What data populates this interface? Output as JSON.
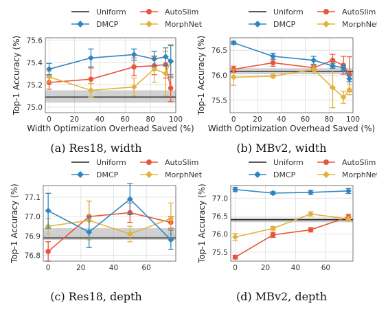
{
  "legend": {
    "uniform": "Uniform",
    "dmcp": "DMCP",
    "autoslim": "AutoSlim",
    "morphnet": "MorphNet"
  },
  "colors": {
    "uniform": "#222222",
    "dmcp": "#2e86c1",
    "autoslim": "#e8553a",
    "morphnet": "#e2b33c",
    "band": "#9a9a9a"
  },
  "chart_data": [
    {
      "type": "line",
      "caption": "(a) Res18, width",
      "xlabel": "Width Optimization Overhead Saved (%)",
      "ylabel": "Top-1 Accuracy (%)",
      "xlim": [
        -3,
        100
      ],
      "ylim": [
        74.95,
        75.62
      ],
      "xticks": [
        0,
        20,
        40,
        60,
        80,
        100
      ],
      "yticks": [
        75.0,
        75.2,
        75.4,
        75.6
      ],
      "ytick_labels": [
        "75.0",
        "75.2",
        "75.4",
        "75.6"
      ],
      "uniform": {
        "value": 75.09,
        "band": [
          75.04,
          75.15
        ]
      },
      "series": [
        {
          "name": "DMCP",
          "x": [
            0,
            33,
            67,
            83,
            92,
            96
          ],
          "y": [
            75.34,
            75.44,
            75.47,
            75.43,
            75.45,
            75.41
          ],
          "err": [
            0.05,
            0.08,
            0.05,
            0.07,
            0.08,
            0.14
          ]
        },
        {
          "name": "AutoSlim",
          "x": [
            0,
            33,
            67,
            83,
            92,
            96
          ],
          "y": [
            75.22,
            75.25,
            75.36,
            75.37,
            75.38,
            75.17
          ],
          "err": [
            0.06,
            0.1,
            0.08,
            0.08,
            0.12,
            0.12
          ]
        },
        {
          "name": "MorphNet",
          "x": [
            0,
            33,
            67,
            83,
            92,
            96
          ],
          "y": [
            75.27,
            75.15,
            75.18,
            75.34,
            75.3,
            75.41
          ],
          "err": [
            0.05,
            0.06,
            0.08,
            0.12,
            0.2,
            0.15
          ]
        }
      ]
    },
    {
      "type": "line",
      "caption": "(b) MBv2, width",
      "xlabel": "Width Optimization Overhead Saved (%)",
      "ylabel": "Top-1 Accuracy (%)",
      "xlim": [
        -3,
        100
      ],
      "ylim": [
        75.25,
        76.75
      ],
      "xticks": [
        0,
        20,
        40,
        60,
        80,
        100
      ],
      "yticks": [
        75.5,
        76.0,
        76.5
      ],
      "ytick_labels": [
        "75.5",
        "76.0",
        "76.5"
      ],
      "uniform": {
        "value": 76.08,
        "band": [
          76.02,
          76.14
        ]
      },
      "series": [
        {
          "name": "DMCP",
          "x": [
            0,
            33,
            67,
            83,
            92,
            97
          ],
          "y": [
            76.65,
            76.38,
            76.3,
            76.19,
            76.15,
            75.93
          ],
          "err": [
            0.03,
            0.06,
            0.08,
            0.05,
            0.05,
            0.06
          ]
        },
        {
          "name": "AutoSlim",
          "x": [
            0,
            33,
            67,
            83,
            92,
            97
          ],
          "y": [
            76.12,
            76.25,
            76.15,
            76.3,
            76.2,
            76.02
          ],
          "err": [
            0.06,
            0.07,
            0.05,
            0.12,
            0.18,
            0.35
          ]
        },
        {
          "name": "MorphNet",
          "x": [
            0,
            33,
            67,
            83,
            92,
            97
          ],
          "y": [
            75.96,
            75.98,
            76.12,
            75.75,
            75.56,
            75.71
          ],
          "err": [
            0.16,
            0.03,
            0.09,
            0.4,
            0.12,
            0.1
          ]
        }
      ]
    },
    {
      "type": "line",
      "caption": "(c) Res18, depth",
      "xlabel": "Width Optimization Overhead Saved (%)",
      "ylabel": "Top-1 Accuracy (%)",
      "xlim": [
        -3,
        78
      ],
      "ylim": [
        76.77,
        77.16
      ],
      "xticks": [
        0,
        20,
        40,
        60
      ],
      "yticks": [
        76.8,
        76.9,
        77.0,
        77.1
      ],
      "ytick_labels": [
        "76.8",
        "76.9",
        "77.0",
        "77.1"
      ],
      "uniform": {
        "value": 76.89,
        "band": [
          76.88,
          76.94
        ]
      },
      "series": [
        {
          "name": "DMCP",
          "x": [
            0,
            25,
            50,
            75
          ],
          "y": [
            77.03,
            76.92,
            77.09,
            76.88
          ],
          "err": [
            0.09,
            0.08,
            0.08,
            0.05
          ]
        },
        {
          "name": "AutoSlim",
          "x": [
            0,
            25,
            50,
            75
          ],
          "y": [
            76.82,
            77.0,
            77.02,
            76.97
          ],
          "err": [
            0.05,
            0.08,
            0.05,
            0.03
          ]
        },
        {
          "name": "MorphNet",
          "x": [
            0,
            25,
            50,
            75
          ],
          "y": [
            76.95,
            76.98,
            76.91,
            76.99
          ],
          "err": [
            0.04,
            0.1,
            0.04,
            0.08
          ]
        }
      ]
    },
    {
      "type": "line",
      "caption": "(d) MBv2, depth",
      "xlabel": "Width Optimization Overhead Saved (%)",
      "ylabel": "Top-1 Accuracy (%)",
      "xlim": [
        -3,
        78
      ],
      "ylim": [
        75.25,
        77.35
      ],
      "xticks": [
        0,
        20,
        40,
        60
      ],
      "yticks": [
        75.5,
        76.0,
        76.5,
        77.0
      ],
      "ytick_labels": [
        "75.5",
        "76.0",
        "76.5",
        "77.0"
      ],
      "uniform": {
        "value": 76.4,
        "band": [
          76.33,
          76.46
        ]
      },
      "series": [
        {
          "name": "DMCP",
          "x": [
            0,
            25,
            50,
            75
          ],
          "y": [
            77.24,
            77.14,
            77.16,
            77.2
          ],
          "err": [
            0.06,
            0.04,
            0.05,
            0.07
          ]
        },
        {
          "name": "AutoSlim",
          "x": [
            0,
            25,
            50,
            75
          ],
          "y": [
            75.36,
            75.98,
            76.12,
            76.48
          ],
          "err": [
            0.05,
            0.07,
            0.06,
            0.07
          ]
        },
        {
          "name": "MorphNet",
          "x": [
            0,
            25,
            50,
            75
          ],
          "y": [
            75.92,
            76.16,
            76.56,
            76.42
          ],
          "err": [
            0.1,
            0.05,
            0.06,
            0.06
          ]
        }
      ]
    }
  ]
}
